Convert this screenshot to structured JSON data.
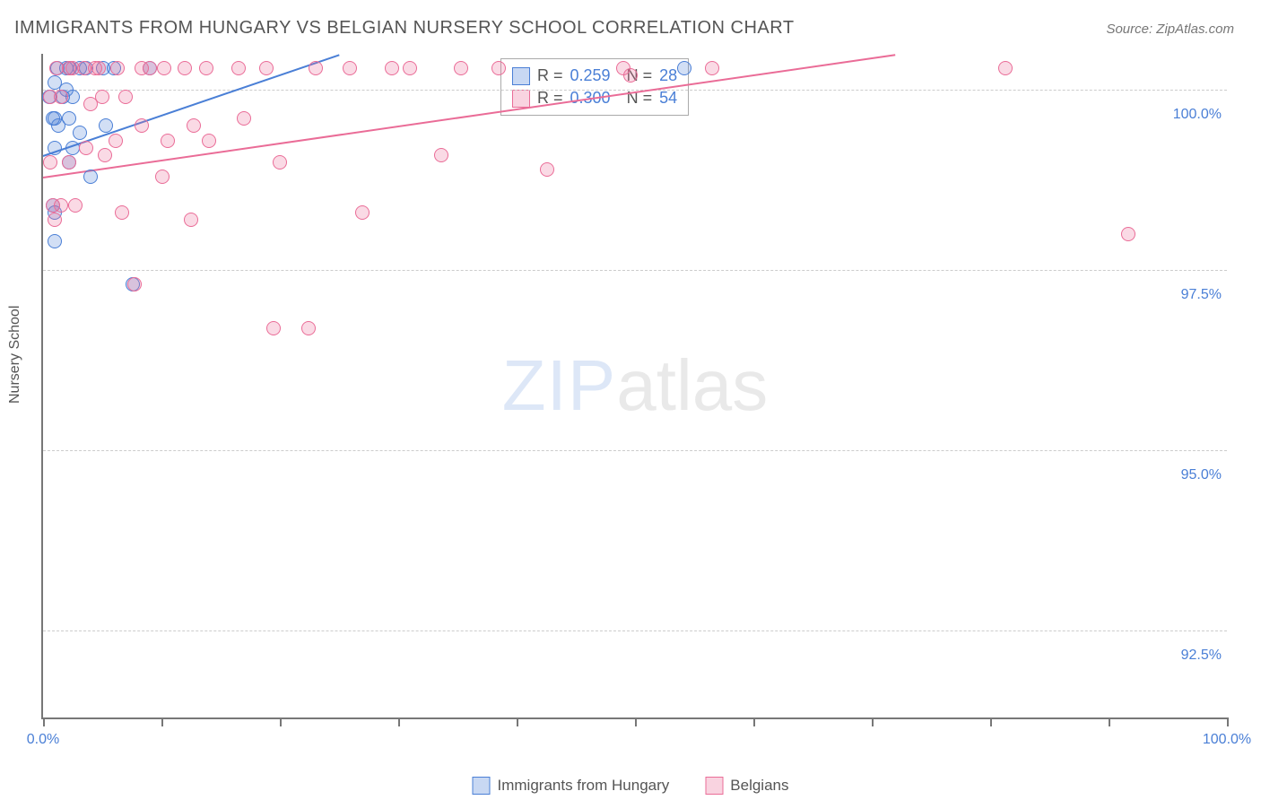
{
  "title": "IMMIGRANTS FROM HUNGARY VS BELGIAN NURSERY SCHOOL CORRELATION CHART",
  "source": "Source: ZipAtlas.com",
  "y_axis_label": "Nursery School",
  "watermark": {
    "part1": "ZIP",
    "part2": "atlas"
  },
  "chart": {
    "type": "scatter",
    "background_color": "#ffffff",
    "grid_color": "#cccccc",
    "axis_color": "#777777",
    "text_color": "#555555",
    "value_color": "#4a7fd6",
    "xlim": [
      0,
      100
    ],
    "ylim": [
      91.3,
      100.5
    ],
    "ytick_values": [
      92.5,
      95.0,
      97.5,
      100.0
    ],
    "ytick_labels": [
      "92.5%",
      "95.0%",
      "97.5%",
      "100.0%"
    ],
    "xtick_values": [
      0,
      10,
      20,
      30,
      40,
      50,
      60,
      70,
      80,
      90,
      100
    ],
    "xtick_label_left": "0.0%",
    "xtick_label_right": "100.0%",
    "marker_radius": 8,
    "marker_fill_opacity": 0.25,
    "marker_stroke_width": 1.5,
    "trend_line_width": 2.5,
    "series": [
      {
        "id": "hungary",
        "label": "Immigrants from Hungary",
        "color": "#4a7fd6",
        "r_value": "0.259",
        "n_value": "28",
        "trend": {
          "x1": 0,
          "y1": 99.1,
          "x2": 25,
          "y2": 100.5
        },
        "points": [
          [
            0.5,
            99.9
          ],
          [
            0.8,
            99.6
          ],
          [
            0.8,
            98.4
          ],
          [
            1.0,
            100.1
          ],
          [
            1.0,
            99.6
          ],
          [
            1.0,
            99.2
          ],
          [
            1.0,
            98.3
          ],
          [
            1.0,
            97.9
          ],
          [
            1.2,
            100.3
          ],
          [
            1.3,
            99.5
          ],
          [
            1.7,
            99.9
          ],
          [
            2.0,
            100.3
          ],
          [
            2.0,
            100.0
          ],
          [
            2.2,
            99.6
          ],
          [
            2.2,
            99.0
          ],
          [
            2.3,
            100.3
          ],
          [
            2.5,
            99.9
          ],
          [
            2.5,
            99.2
          ],
          [
            3.1,
            100.3
          ],
          [
            3.1,
            99.4
          ],
          [
            3.6,
            100.3
          ],
          [
            4.0,
            98.8
          ],
          [
            5.1,
            100.3
          ],
          [
            5.3,
            99.5
          ],
          [
            6.0,
            100.3
          ],
          [
            7.6,
            97.3
          ],
          [
            9.0,
            100.3
          ],
          [
            54.2,
            100.3
          ]
        ]
      },
      {
        "id": "belgians",
        "label": "Belgians",
        "color": "#ea6c97",
        "r_value": "0.300",
        "n_value": "54",
        "trend": {
          "x1": 0,
          "y1": 98.8,
          "x2": 72,
          "y2": 100.5
        },
        "points": [
          [
            0.6,
            99.9
          ],
          [
            0.6,
            99.0
          ],
          [
            0.8,
            98.4
          ],
          [
            1.0,
            98.2
          ],
          [
            1.1,
            100.3
          ],
          [
            1.5,
            99.9
          ],
          [
            1.5,
            98.4
          ],
          [
            2.2,
            99.0
          ],
          [
            2.2,
            100.3
          ],
          [
            2.5,
            100.3
          ],
          [
            2.7,
            98.4
          ],
          [
            3.5,
            100.3
          ],
          [
            3.6,
            99.2
          ],
          [
            4.0,
            99.8
          ],
          [
            4.4,
            100.3
          ],
          [
            4.7,
            100.3
          ],
          [
            5.0,
            99.9
          ],
          [
            5.2,
            99.1
          ],
          [
            6.1,
            99.3
          ],
          [
            6.3,
            100.3
          ],
          [
            6.7,
            98.3
          ],
          [
            7.0,
            99.9
          ],
          [
            7.7,
            97.3
          ],
          [
            8.3,
            99.5
          ],
          [
            8.3,
            100.3
          ],
          [
            9.0,
            100.3
          ],
          [
            10.1,
            98.8
          ],
          [
            10.2,
            100.3
          ],
          [
            10.5,
            99.3
          ],
          [
            12.0,
            100.3
          ],
          [
            12.5,
            98.2
          ],
          [
            12.7,
            99.5
          ],
          [
            13.8,
            100.3
          ],
          [
            14.0,
            99.3
          ],
          [
            16.5,
            100.3
          ],
          [
            17.0,
            99.6
          ],
          [
            18.9,
            100.3
          ],
          [
            19.5,
            96.7
          ],
          [
            20.0,
            99.0
          ],
          [
            22.4,
            96.7
          ],
          [
            23.0,
            100.3
          ],
          [
            25.9,
            100.3
          ],
          [
            27.0,
            98.3
          ],
          [
            29.5,
            100.3
          ],
          [
            31.0,
            100.3
          ],
          [
            33.6,
            99.1
          ],
          [
            35.3,
            100.3
          ],
          [
            38.5,
            100.3
          ],
          [
            42.6,
            98.9
          ],
          [
            49.0,
            100.3
          ],
          [
            49.6,
            100.2
          ],
          [
            56.5,
            100.3
          ],
          [
            81.3,
            100.3
          ],
          [
            91.7,
            98.0
          ]
        ]
      }
    ]
  },
  "legend_box": {
    "rows": [
      {
        "swatch_color": "#4a7fd6",
        "r_label": "R =",
        "r": "0.259",
        "n_label": "N =",
        "n": "28"
      },
      {
        "swatch_color": "#ea6c97",
        "r_label": "R =",
        "r": "0.300",
        "n_label": "N =",
        "n": "54"
      }
    ]
  }
}
